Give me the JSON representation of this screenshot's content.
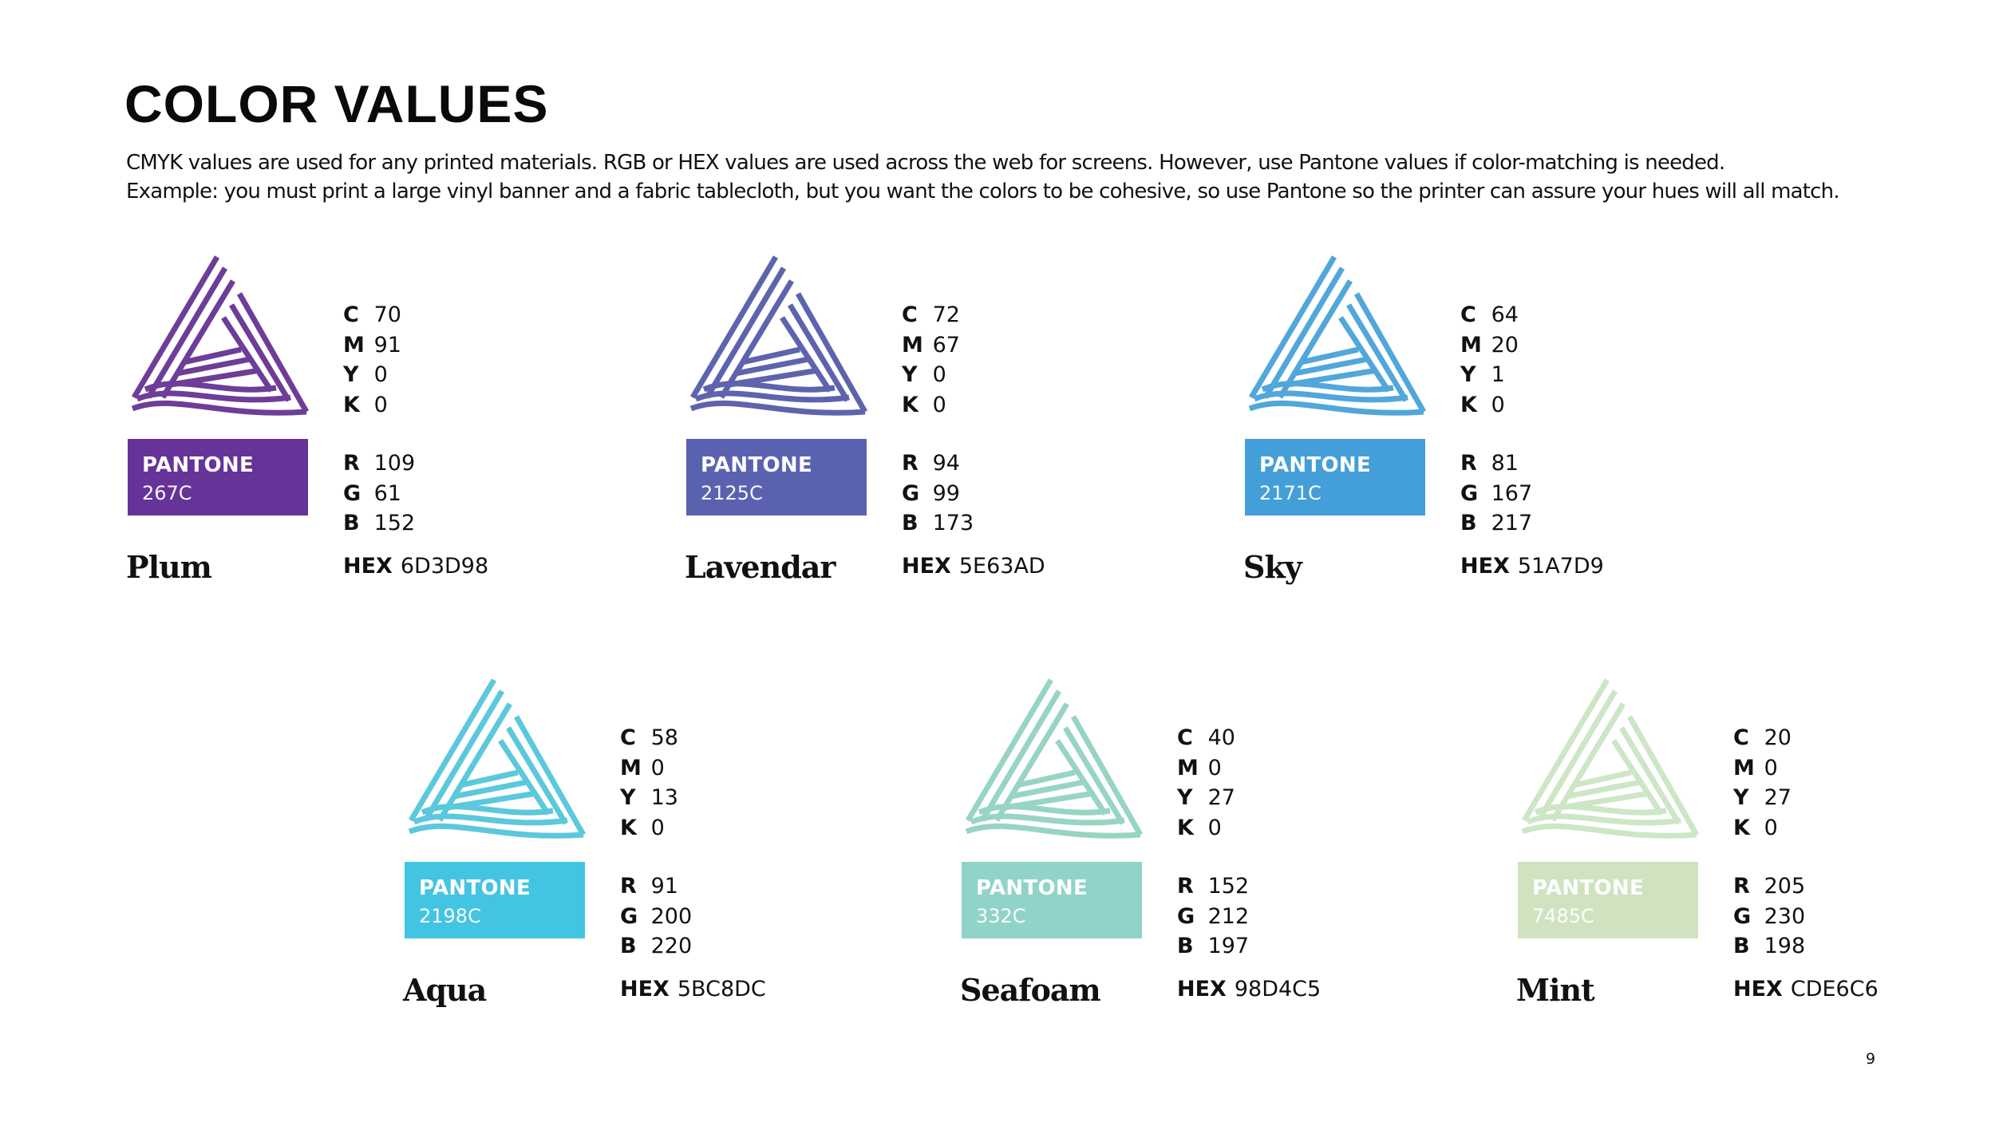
{
  "page": {
    "title": "COLOR VALUES",
    "description": [
      "CMYK values are used for any printed materials. RGB or HEX values are used across the web for screens. However, use Pantone values if color-matching is needed.",
      "Example: you must print a large vinyl banner and a fabric tablecloth, but you want the colors to be cohesive, so use Pantone so the printer can assure your hues will all match."
    ],
    "page_number": "9"
  },
  "swatches": [
    {
      "name": "Plum",
      "color": "#6D3D98",
      "box_color": "#663399",
      "pantone_label": "PANTONE",
      "pantone_code": "267C",
      "c": "70",
      "m": "91",
      "y": "0",
      "k": "0",
      "r": "109",
      "g": "61",
      "b": "152",
      "hex": "6D3D98"
    },
    {
      "name": "Lavendar",
      "color": "#5E63AD",
      "box_color": "#5A62B0",
      "pantone_label": "PANTONE",
      "pantone_code": "2125C",
      "c": "72",
      "m": "67",
      "y": "0",
      "k": "0",
      "r": "94",
      "g": "99",
      "b": "173",
      "hex": "5E63AD"
    },
    {
      "name": "Sky",
      "color": "#51A7D9",
      "box_color": "#449FD8",
      "pantone_label": "PANTONE",
      "pantone_code": "2171C",
      "c": "64",
      "m": "20",
      "y": "1",
      "k": "0",
      "r": "81",
      "g": "167",
      "b": "217",
      "hex": "51A7D9"
    },
    {
      "name": "Aqua",
      "color": "#5BC8DC",
      "box_color": "#44C4E3",
      "pantone_label": "PANTONE",
      "pantone_code": "2198C",
      "c": "58",
      "m": "0",
      "y": "13",
      "k": "0",
      "r": "91",
      "g": "200",
      "b": "220",
      "hex": "5BC8DC"
    },
    {
      "name": "Seafoam",
      "color": "#98D4C5",
      "box_color": "#92D3C9",
      "pantone_label": "PANTONE",
      "pantone_code": "332C",
      "c": "40",
      "m": "0",
      "y": "27",
      "k": "0",
      "r": "152",
      "g": "212",
      "b": "197",
      "hex": "98D4C5"
    },
    {
      "name": "Mint",
      "color": "#CDE6C6",
      "box_color": "#CFE3C0",
      "pantone_label": "PANTONE",
      "pantone_code": "7485C",
      "c": "20",
      "m": "0",
      "y": "27",
      "k": "0",
      "r": "205",
      "g": "230",
      "b": "198",
      "hex": "CDE6C6"
    }
  ],
  "labels": {
    "c": "C",
    "m": "M",
    "y": "Y",
    "k": "K",
    "r": "R",
    "g": "G",
    "b": "B",
    "hex": "HEX"
  }
}
